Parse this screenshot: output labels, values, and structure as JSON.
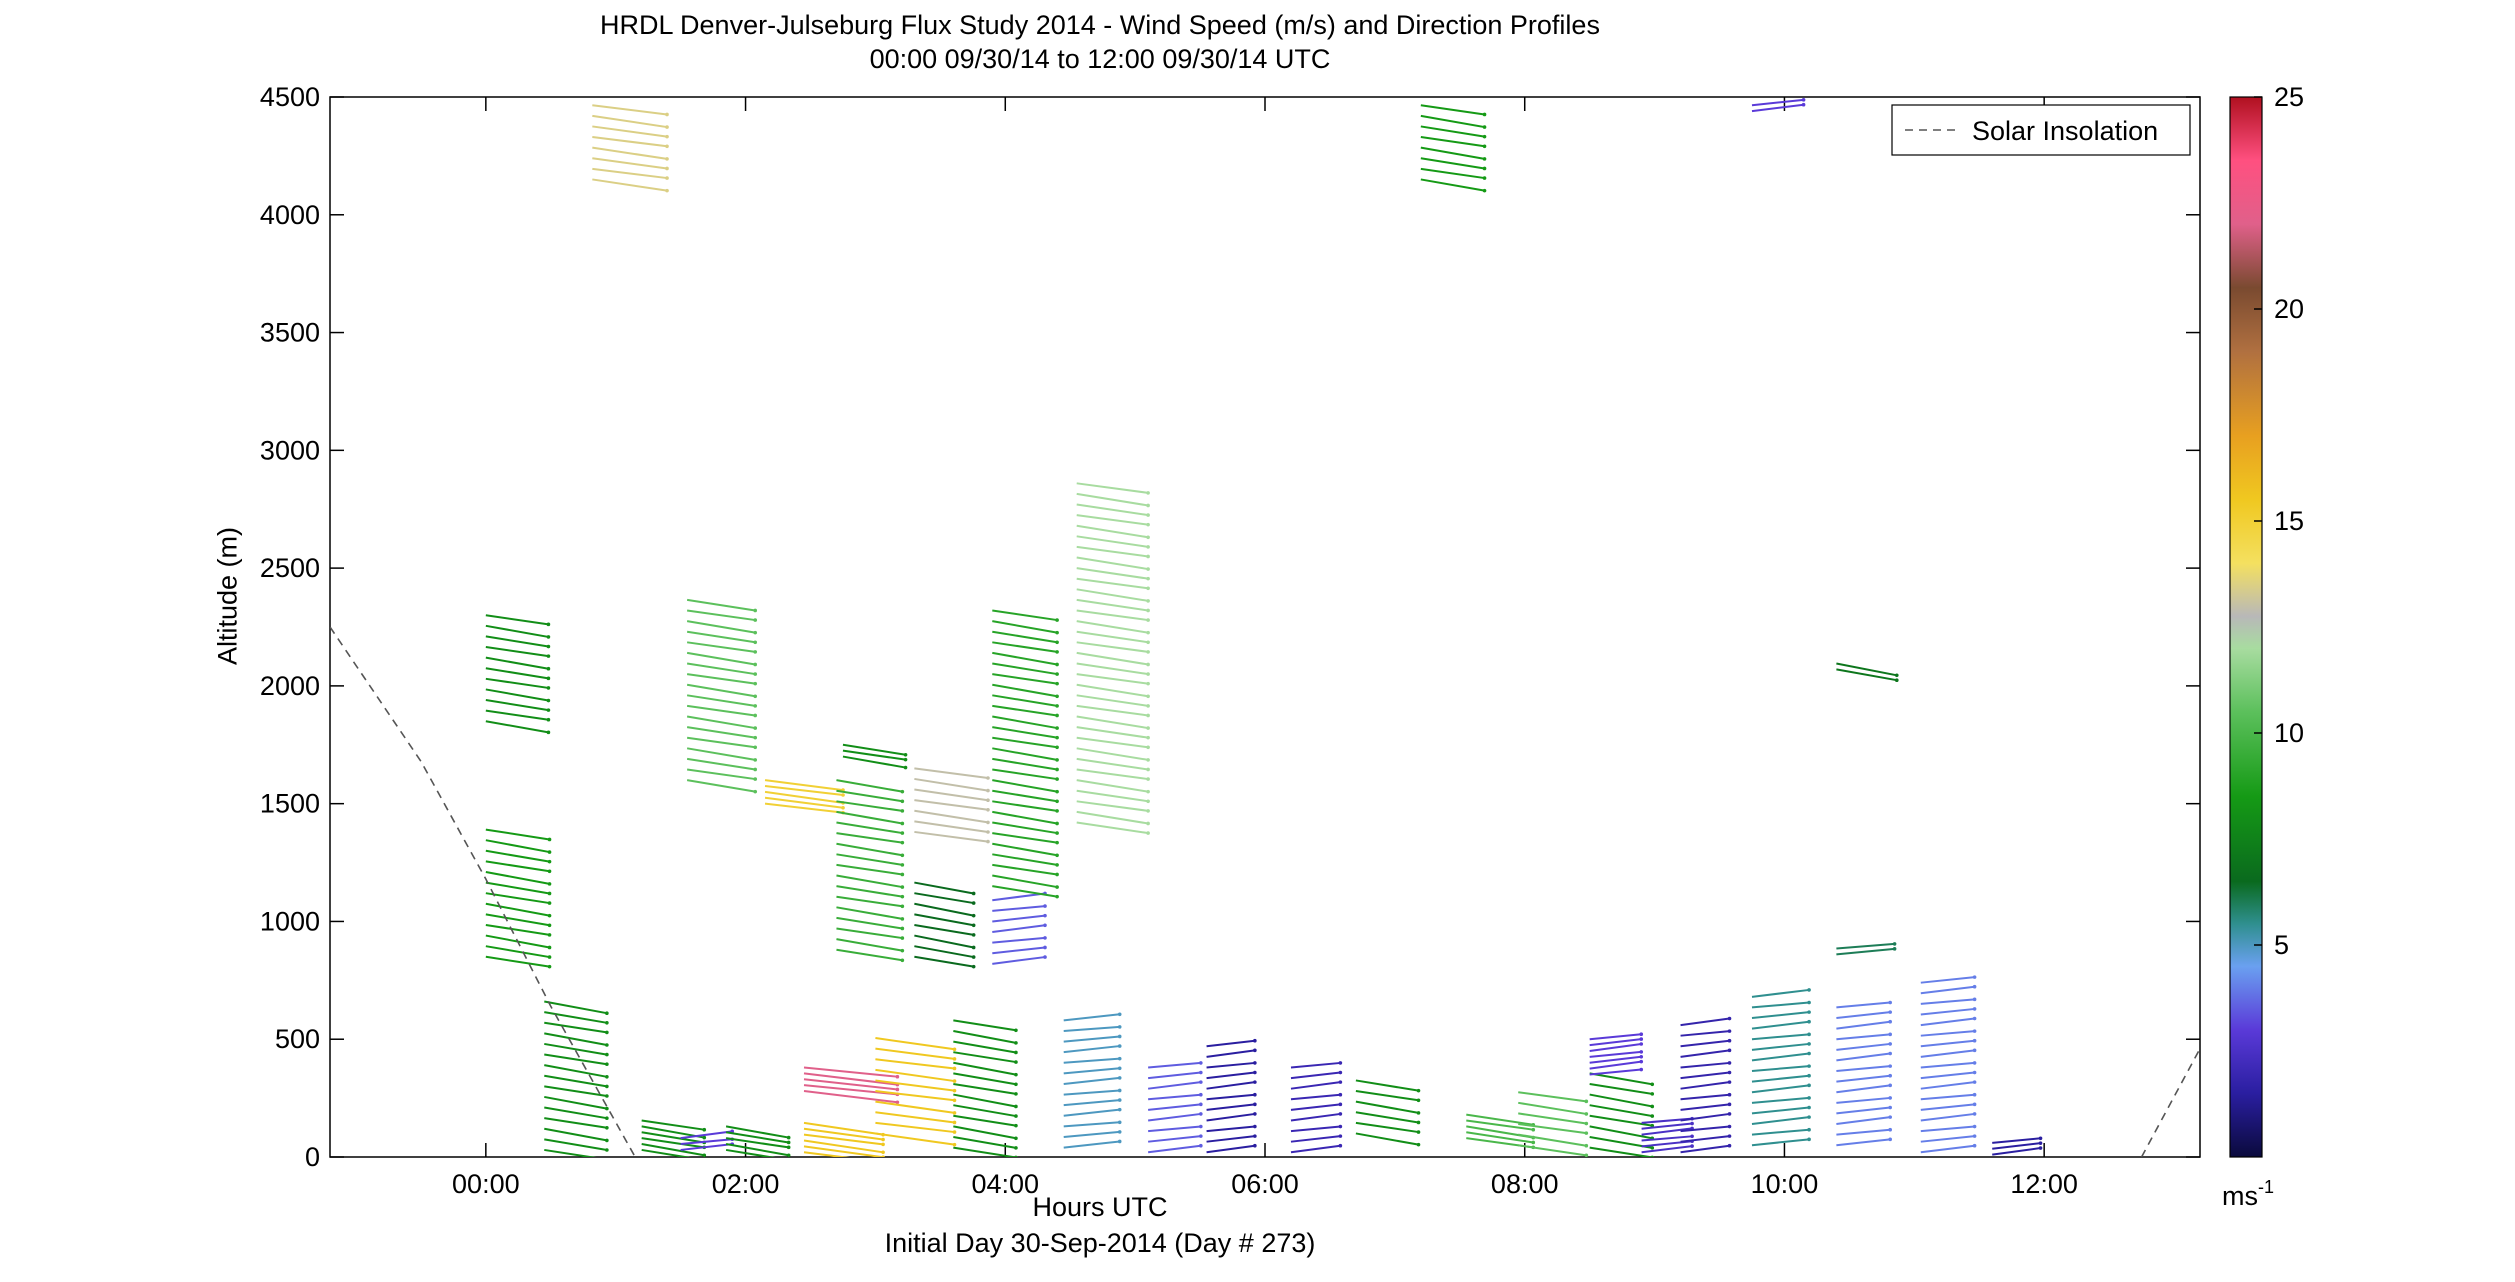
{
  "chart_data": {
    "type": "wind-barb-profile",
    "title": "HRDL Denver-Julseburg Flux Study 2014 - Wind Speed (m/s) and Direction Profiles",
    "subtitle": "00:00 09/30/14 to 12:00 09/30/14  UTC",
    "xlabel": "Hours UTC",
    "ylabel": "Altitude (m)",
    "footer": "Initial Day 30-Sep-2014 (Day # 273)",
    "x_ticks": [
      "00:00",
      "02:00",
      "04:00",
      "06:00",
      "08:00",
      "10:00",
      "12:00"
    ],
    "xlim_hours": [
      -1.2,
      13.2
    ],
    "ylim": [
      0,
      4500
    ],
    "y_ticks": [
      0,
      500,
      1000,
      1500,
      2000,
      2500,
      3000,
      3500,
      4000,
      4500
    ],
    "legend": {
      "entry": "Solar Insolation",
      "position": "top-right"
    },
    "colorbar": {
      "min": 0,
      "max": 25,
      "ticks": [
        5,
        10,
        15,
        20,
        25
      ],
      "unit_base": "ms",
      "unit_exp": "-1"
    },
    "solar_insolation": [
      {
        "x": -1.2,
        "y": 2250
      },
      {
        "x": -0.5,
        "y": 1680
      },
      {
        "x": 0.0,
        "y": 1180
      },
      {
        "x": 0.5,
        "y": 640
      },
      {
        "x": 1.15,
        "y": 0
      },
      {
        "x": 12.75,
        "y": 0
      },
      {
        "x": 13.2,
        "y": 460
      }
    ],
    "profiles": [
      {
        "t": 0.0,
        "segments": [
          {
            "from": 1850,
            "to": 2340,
            "speed": 8.0
          },
          {
            "from": 850,
            "to": 1400,
            "speed": 8.5
          }
        ]
      },
      {
        "t": 0.45,
        "segments": [
          {
            "from": 30,
            "to": 700,
            "speed": 8.0
          }
        ]
      },
      {
        "t": 0.82,
        "segments": [
          {
            "from": 4150,
            "to": 4500,
            "speed": 13.5
          }
        ]
      },
      {
        "t": 1.2,
        "segments": [
          {
            "from": 30,
            "to": 170,
            "speed": 8.0
          }
        ]
      },
      {
        "t": 1.5,
        "segments": [
          {
            "from": 30,
            "to": 80,
            "speed": 3.0
          }
        ]
      },
      {
        "t": 1.55,
        "segments": [
          {
            "from": 1600,
            "to": 2380,
            "speed": 10.5
          }
        ]
      },
      {
        "t": 1.85,
        "segments": [
          {
            "from": 30,
            "to": 130,
            "speed": 8.0
          }
        ]
      },
      {
        "t": 2.15,
        "segments": [
          {
            "from": 1500,
            "to": 1620,
            "speed": 15.0
          }
        ]
      },
      {
        "t": 2.45,
        "segments": [
          {
            "from": 280,
            "to": 400,
            "speed": 22.0
          },
          {
            "from": 20,
            "to": 150,
            "speed": 15.5
          }
        ]
      },
      {
        "t": 2.7,
        "segments": [
          {
            "from": 880,
            "to": 1600,
            "speed": 9.5
          }
        ]
      },
      {
        "t": 2.75,
        "segments": [
          {
            "from": 1700,
            "to": 1770,
            "speed": 8.0
          }
        ]
      },
      {
        "t": 3.0,
        "segments": [
          {
            "from": 100,
            "to": 540,
            "speed": 15.5
          }
        ]
      },
      {
        "t": 3.3,
        "segments": [
          {
            "from": 850,
            "to": 1200,
            "speed": 6.5
          },
          {
            "from": 1380,
            "to": 1650,
            "speed": 13.0
          }
        ]
      },
      {
        "t": 3.6,
        "segments": [
          {
            "from": 40,
            "to": 590,
            "speed": 8.0
          }
        ]
      },
      {
        "t": 3.9,
        "segments": [
          {
            "from": 820,
            "to": 1100,
            "speed": 3.5
          },
          {
            "from": 1150,
            "to": 2360,
            "speed": 9.0
          }
        ]
      },
      {
        "t": 4.45,
        "segments": [
          {
            "from": 40,
            "to": 600,
            "speed": 5.0
          }
        ]
      },
      {
        "t": 4.55,
        "segments": [
          {
            "from": 1420,
            "to": 2880,
            "speed": 12.0
          }
        ]
      },
      {
        "t": 5.1,
        "segments": [
          {
            "from": 20,
            "to": 420,
            "speed": 3.5
          }
        ]
      },
      {
        "t": 5.55,
        "segments": [
          {
            "from": 20,
            "to": 500,
            "speed": 1.5
          }
        ]
      },
      {
        "t": 6.2,
        "segments": [
          {
            "from": 20,
            "to": 380,
            "speed": 2.0
          }
        ]
      },
      {
        "t": 6.7,
        "segments": [
          {
            "from": 100,
            "to": 350,
            "speed": 8.0
          }
        ]
      },
      {
        "t": 7.2,
        "segments": [
          {
            "from": 4150,
            "to": 4500,
            "speed": 8.5
          }
        ]
      },
      {
        "t": 7.55,
        "segments": [
          {
            "from": 80,
            "to": 200,
            "speed": 10.0
          }
        ]
      },
      {
        "t": 7.95,
        "segments": [
          {
            "from": 50,
            "to": 300,
            "speed": 10.5
          }
        ]
      },
      {
        "t": 8.5,
        "segments": [
          {
            "from": 40,
            "to": 380,
            "speed": 8.0
          }
        ]
      },
      {
        "t": 8.5,
        "segments": [
          {
            "from": 350,
            "to": 500,
            "speed": 3.0
          }
        ]
      },
      {
        "t": 8.9,
        "segments": [
          {
            "from": 20,
            "to": 150,
            "speed": 2.5
          }
        ]
      },
      {
        "t": 9.2,
        "segments": [
          {
            "from": 20,
            "to": 600,
            "speed": 1.8
          }
        ]
      },
      {
        "t": 9.75,
        "segments": [
          {
            "from": 4440,
            "to": 4480,
            "speed": 3.0
          },
          {
            "from": 50,
            "to": 700,
            "speed": 5.5
          }
        ]
      },
      {
        "t": 10.4,
        "segments": [
          {
            "from": 50,
            "to": 640,
            "speed": 4.0
          },
          {
            "from": 2070,
            "to": 2100,
            "speed": 7.0
          },
          {
            "from": 860,
            "to": 900,
            "speed": 6.0
          }
        ]
      },
      {
        "t": 11.05,
        "segments": [
          {
            "from": 20,
            "to": 760,
            "speed": 4.0
          }
        ]
      },
      {
        "t": 11.6,
        "segments": [
          {
            "from": 10,
            "to": 60,
            "speed": 1.5
          }
        ]
      }
    ]
  }
}
